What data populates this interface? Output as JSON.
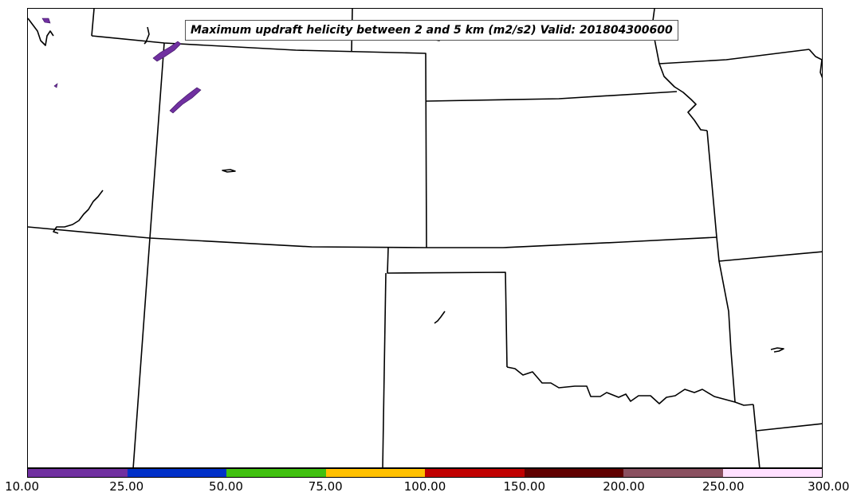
{
  "title": "Maximum updraft helicity between 2 and 5 km (m2/s2) Valid: 201804300600",
  "colorbar": {
    "colors": [
      "#7030a0",
      "#0030c8",
      "#40c010",
      "#ffc000",
      "#c00000",
      "#600000",
      "#8a5060",
      "#ffe0ff"
    ],
    "ticks": [
      "10.00",
      "25.00",
      "50.00",
      "75.00",
      "100.00",
      "150.00",
      "200.00",
      "250.00",
      "300.00"
    ]
  },
  "helicity_features": [
    {
      "value_range": "10.00-25.00",
      "color": "#7030a0"
    },
    {
      "value_range": "10.00-25.00",
      "color": "#7030a0"
    },
    {
      "value_range": "10.00-25.00",
      "color": "#7030a0"
    }
  ]
}
